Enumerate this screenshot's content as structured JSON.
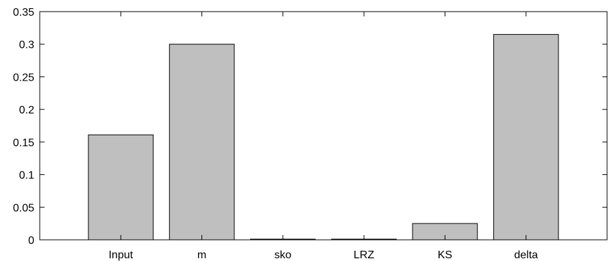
{
  "chart_data": {
    "type": "bar",
    "title": "",
    "xlabel": "",
    "ylabel": "",
    "categories": [
      "Input",
      "m",
      "sko",
      "LRZ",
      "KS",
      "delta"
    ],
    "values": [
      0.161,
      0.3,
      0.001,
      0.001,
      0.025,
      0.315
    ],
    "ylim": [
      0,
      0.35
    ],
    "yticks": [
      0,
      0.05,
      0.1,
      0.15,
      0.2,
      0.25,
      0.3,
      0.35
    ],
    "ytick_labels": [
      "0",
      "0.05",
      "0.1",
      "0.15",
      "0.2",
      "0.25",
      "0.3",
      "0.35"
    ],
    "grid": false,
    "colors": {
      "bar_fill": "#bfbfbf",
      "bar_edge": "#000000",
      "axis": "#000000"
    }
  }
}
